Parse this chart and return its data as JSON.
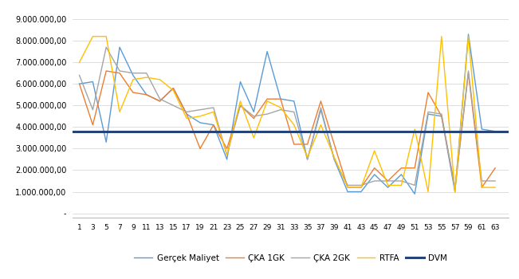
{
  "x": [
    1,
    3,
    5,
    7,
    9,
    11,
    13,
    15,
    17,
    19,
    21,
    23,
    25,
    27,
    29,
    31,
    33,
    35,
    37,
    39,
    41,
    43,
    45,
    47,
    49,
    51,
    53,
    55,
    57,
    59,
    61,
    63
  ],
  "gerçek_maliyet": [
    6000000,
    6100000,
    3300000,
    7700000,
    6400000,
    5500000,
    5200000,
    5800000,
    4600000,
    4200000,
    4100000,
    2500000,
    6100000,
    4700000,
    7500000,
    5300000,
    5200000,
    2500000,
    4800000,
    2500000,
    1000000,
    1000000,
    1800000,
    1200000,
    1800000,
    900000,
    4600000,
    4500000,
    1000000,
    8300000,
    3900000,
    3800000
  ],
  "çka_1gk": [
    6000000,
    4100000,
    6600000,
    6500000,
    5600000,
    5500000,
    5200000,
    5800000,
    4600000,
    3000000,
    4100000,
    3000000,
    5000000,
    4400000,
    5300000,
    5300000,
    3200000,
    3200000,
    5200000,
    3200000,
    1200000,
    1200000,
    2100000,
    1500000,
    2100000,
    2100000,
    5600000,
    4500000,
    1200000,
    6500000,
    1200000,
    2100000
  ],
  "çka_2gk": [
    6400000,
    4800000,
    7700000,
    6600000,
    6500000,
    6500000,
    5300000,
    5000000,
    4700000,
    4800000,
    4900000,
    2700000,
    5000000,
    4500000,
    4600000,
    4800000,
    4700000,
    2500000,
    4900000,
    2500000,
    1300000,
    1300000,
    1500000,
    1500000,
    1500000,
    1300000,
    4700000,
    4600000,
    1100000,
    6600000,
    1500000,
    1500000
  ],
  "rtfa": [
    7000000,
    8200000,
    8200000,
    4700000,
    6200000,
    6300000,
    6200000,
    5700000,
    4400000,
    4500000,
    4700000,
    2700000,
    5200000,
    3500000,
    5200000,
    4900000,
    4100000,
    2600000,
    4100000,
    2600000,
    1200000,
    1200000,
    2900000,
    1300000,
    1300000,
    3900000,
    1000000,
    8200000,
    1000000,
    8200000,
    1200000,
    1200000
  ],
  "dvm": 3800000,
  "colors": {
    "gerçek_maliyet": "#5B9BD5",
    "çka_1gk": "#ED7D31",
    "çka_2gk": "#A5A5A5",
    "rtfa": "#FFC000",
    "dvm": "#264478"
  },
  "yticks": [
    0,
    1000000,
    2000000,
    3000000,
    4000000,
    5000000,
    6000000,
    7000000,
    8000000,
    9000000
  ],
  "ylim": [
    -200000,
    9500000
  ],
  "xlim": [
    0,
    65
  ],
  "background": "#ffffff",
  "legend_labels": [
    "Gerçek Maliyet",
    "ÇKA 1GK",
    "ÇKA 2GK",
    "RTFA",
    "DVM"
  ],
  "linewidth": 1.0,
  "dvm_linewidth": 2.2
}
